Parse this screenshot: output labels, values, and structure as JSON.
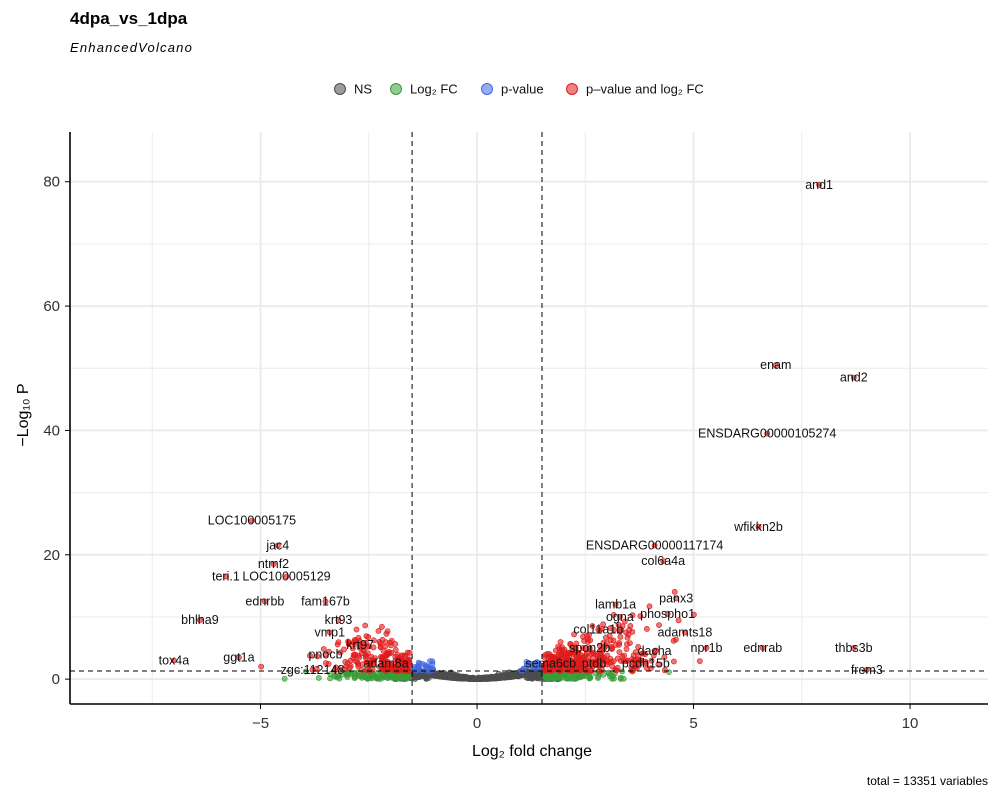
{
  "chart_data": {
    "type": "scatter",
    "title": "4dpa_vs_1dpa",
    "subtitle": "EnhancedVolcano",
    "xlabel": "Log₂ fold change",
    "ylabel": "−Log₁₀ P",
    "caption": "total = 13351 variables",
    "xlim": [
      -9.4,
      11.8
    ],
    "ylim": [
      -4,
      88
    ],
    "x_ticks": [
      -5,
      0,
      5,
      10
    ],
    "y_ticks": [
      0,
      20,
      40,
      60,
      80
    ],
    "grid": true,
    "legend_position": "top",
    "fc_cutoff": 1.5,
    "p_cutoff_neglog10": 1.3,
    "colors": {
      "NS": "#4d4d4d",
      "FC": "#3a9c3a",
      "P": "#4169e1",
      "FC_P": "#e01b1b"
    },
    "legend": [
      {
        "key": "NS",
        "label": "NS"
      },
      {
        "key": "FC",
        "label": "Log₂ FC"
      },
      {
        "key": "P",
        "label": "p-value"
      },
      {
        "key": "FC_P",
        "label": "p–value and log₂ FC"
      }
    ],
    "labeled_genes": [
      {
        "name": "and1",
        "x": 7.9,
        "y": 79.5
      },
      {
        "name": "enam",
        "x": 6.9,
        "y": 50.5
      },
      {
        "name": "and2",
        "x": 8.7,
        "y": 48.5
      },
      {
        "name": "ENSDARG00000105274",
        "x": 6.7,
        "y": 39.5
      },
      {
        "name": "wfikkn2b",
        "x": 6.5,
        "y": 24.5
      },
      {
        "name": "ENSDARG00000117174",
        "x": 4.1,
        "y": 21.5
      },
      {
        "name": "col6a4a",
        "x": 4.3,
        "y": 19.0
      },
      {
        "name": "panx3",
        "x": 4.6,
        "y": 13.0
      },
      {
        "name": "lamb1a",
        "x": 3.2,
        "y": 12.0
      },
      {
        "name": "ogna",
        "x": 3.3,
        "y": 10.0
      },
      {
        "name": "phospho1",
        "x": 4.4,
        "y": 10.5
      },
      {
        "name": "col11a1b",
        "x": 2.8,
        "y": 8.0
      },
      {
        "name": "adamts18",
        "x": 4.8,
        "y": 7.5
      },
      {
        "name": "spon2b",
        "x": 2.6,
        "y": 5.0
      },
      {
        "name": "npr1b",
        "x": 5.3,
        "y": 5.0
      },
      {
        "name": "ednrab",
        "x": 6.6,
        "y": 5.0
      },
      {
        "name": "thbs3b",
        "x": 8.7,
        "y": 5.0
      },
      {
        "name": "dacha",
        "x": 4.1,
        "y": 4.5
      },
      {
        "name": "sema6cb",
        "x": 1.7,
        "y": 2.5
      },
      {
        "name": "ptdb",
        "x": 2.7,
        "y": 2.5
      },
      {
        "name": "pcdh15b",
        "x": 3.9,
        "y": 2.5
      },
      {
        "name": "frem3",
        "x": 9.0,
        "y": 1.5
      },
      {
        "name": "LOC100005175",
        "x": -5.2,
        "y": 25.5
      },
      {
        "name": "jac4",
        "x": -4.6,
        "y": 21.5
      },
      {
        "name": "ntmf2",
        "x": -4.7,
        "y": 18.5
      },
      {
        "name": "teri.1",
        "x": -5.8,
        "y": 16.5
      },
      {
        "name": "LOC100005129",
        "x": -4.4,
        "y": 16.5
      },
      {
        "name": "ednrbb",
        "x": -4.9,
        "y": 12.5
      },
      {
        "name": "fam167b",
        "x": -3.5,
        "y": 12.5
      },
      {
        "name": "bhlha9",
        "x": -6.4,
        "y": 9.5
      },
      {
        "name": "krt93",
        "x": -3.2,
        "y": 9.5
      },
      {
        "name": "vmp1",
        "x": -3.4,
        "y": 7.5
      },
      {
        "name": "krt97",
        "x": -2.7,
        "y": 5.5
      },
      {
        "name": "pnocb",
        "x": -3.5,
        "y": 4.0
      },
      {
        "name": "ggt1a",
        "x": -5.5,
        "y": 3.5
      },
      {
        "name": "tox4a",
        "x": -7.0,
        "y": 3.0
      },
      {
        "name": "adam8a",
        "x": -2.1,
        "y": 2.5
      },
      {
        "name": "zgc:112148",
        "x": -3.8,
        "y": 1.5
      }
    ]
  }
}
